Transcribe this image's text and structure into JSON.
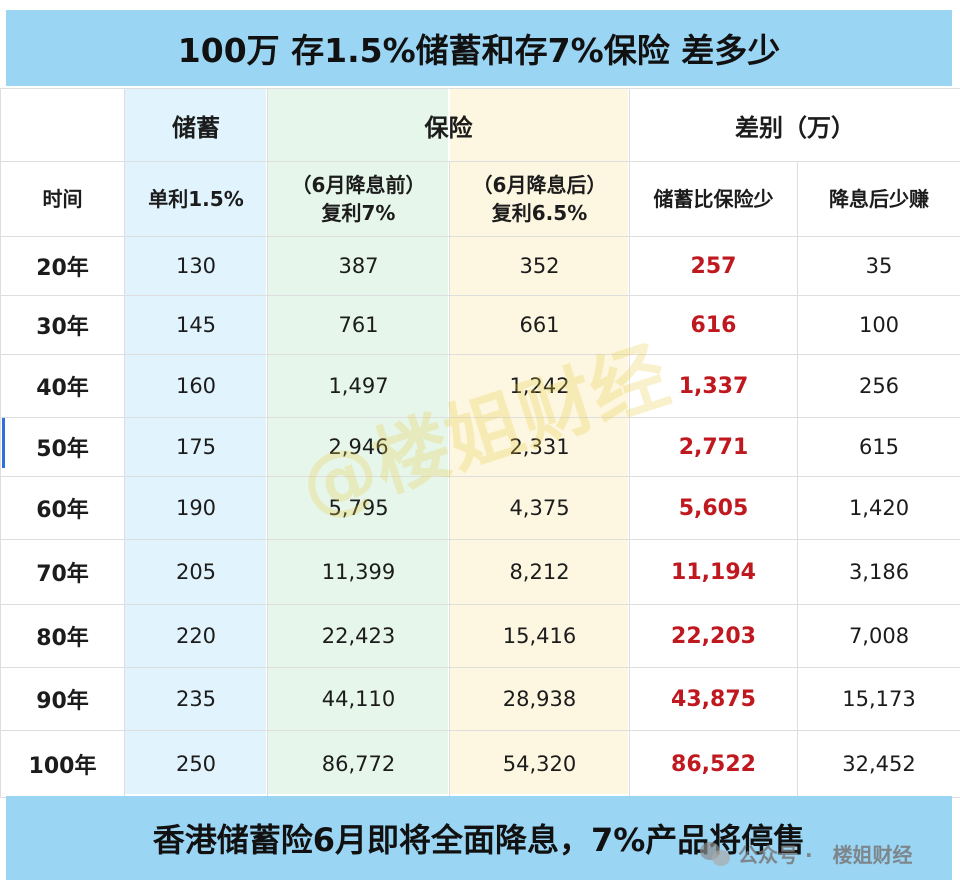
{
  "title": "100万 存1.5%储蓄和存7%保险 差多少",
  "footer": "香港储蓄险6月即将全面降息，7%产品将停售",
  "watermark": "@楼姐财经",
  "brand": {
    "prefix": "公众号 ·",
    "name": "楼姐财经"
  },
  "header": {
    "group_savings": "储蓄",
    "group_insurance": "保险",
    "group_diff": "差别（万）",
    "col_time": "时间",
    "col_savings": "单利1.5%",
    "col_ins_before_1": "（6月降息前）",
    "col_ins_before_2": "复利7%",
    "col_ins_after_1": "（6月降息后）",
    "col_ins_after_2": "复利6.5%",
    "col_diff_less": "储蓄比保险少",
    "col_diff_cut": "降息后少赚"
  },
  "rows": [
    {
      "time": "20年",
      "savings": "130",
      "ins_before": "387",
      "ins_after": "352",
      "diff": "257",
      "cut": "35"
    },
    {
      "time": "30年",
      "savings": "145",
      "ins_before": "761",
      "ins_after": "661",
      "diff": "616",
      "cut": "100"
    },
    {
      "time": "40年",
      "savings": "160",
      "ins_before": "1,497",
      "ins_after": "1,242",
      "diff": "1,337",
      "cut": "256"
    },
    {
      "time": "50年",
      "savings": "175",
      "ins_before": "2,946",
      "ins_after": "2,331",
      "diff": "2,771",
      "cut": "615"
    },
    {
      "time": "60年",
      "savings": "190",
      "ins_before": "5,795",
      "ins_after": "4,375",
      "diff": "5,605",
      "cut": "1,420"
    },
    {
      "time": "70年",
      "savings": "205",
      "ins_before": "11,399",
      "ins_after": "8,212",
      "diff": "11,194",
      "cut": "3,186"
    },
    {
      "time": "80年",
      "savings": "220",
      "ins_before": "22,423",
      "ins_after": "15,416",
      "diff": "22,203",
      "cut": "7,008"
    },
    {
      "time": "90年",
      "savings": "235",
      "ins_before": "44,110",
      "ins_after": "28,938",
      "diff": "43,875",
      "cut": "15,173"
    },
    {
      "time": "100年",
      "savings": "250",
      "ins_before": "86,772",
      "ins_after": "54,320",
      "diff": "86,522",
      "cut": "32,452"
    }
  ],
  "colors": {
    "header_bar": "#9bd5f4",
    "savings_band": "#e1f3fc",
    "insurance_before_band": "#e6f6ea",
    "insurance_after_band": "#fdf7e1",
    "diff_text": "#c0181f"
  }
}
